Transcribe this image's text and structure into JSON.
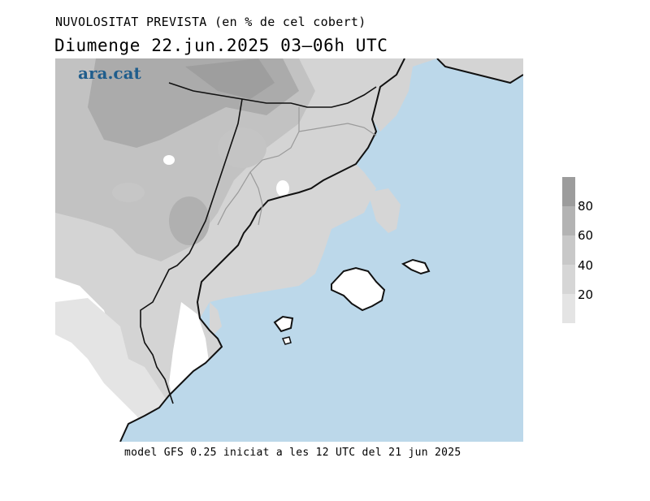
{
  "title_line1": "NUVOLOSITAT PREVISTA (en % de cel cobert)",
  "title_line2": "Diumenge  22.jun.2025 03–06h UTC",
  "logo": "ara.cat",
  "footer": "model GFS 0.25 iniciat a les 12 UTC del 21 jun 2025",
  "legend": {
    "levels": [
      {
        "label": "",
        "color": "#9c9c9c"
      },
      {
        "label": "80",
        "color": "#b3b3b3"
      },
      {
        "label": "60",
        "color": "#c8c8c8"
      },
      {
        "label": "40",
        "color": "#d6d6d6"
      },
      {
        "label": "20",
        "color": "#e4e4e4"
      }
    ]
  },
  "colors": {
    "sea": "#bcd8ea",
    "land_white": "#ffffff",
    "cloud_20": "#e2e2e2",
    "cloud_40": "#d5d5d5",
    "cloud_60": "#c2c2c2",
    "cloud_80": "#a8a8a8",
    "coast": "#111111",
    "border": "#9a9a9a"
  }
}
